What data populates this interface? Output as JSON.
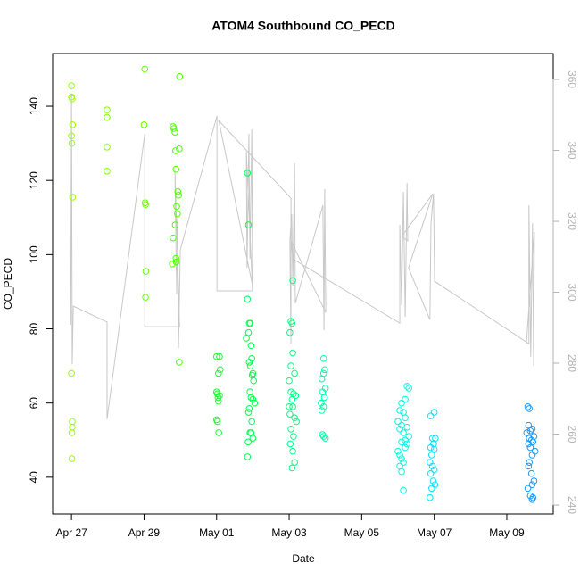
{
  "chart_data": {
    "type": "scatter",
    "title": "ATOM4 Southbound CO_PECD",
    "x_label": "Date",
    "y_label": "CO_PECD",
    "xlim": [
      -0.52,
      13.28
    ],
    "ylim": [
      30.1,
      154.2
    ],
    "y2lim": [
      237.5,
      367.3
    ],
    "xticks": [
      {
        "value": 0,
        "label": "Apr 27"
      },
      {
        "value": 2,
        "label": "Apr 29"
      },
      {
        "value": 4,
        "label": "May 01"
      },
      {
        "value": 6,
        "label": "May 03"
      },
      {
        "value": 8,
        "label": "May 05"
      },
      {
        "value": 10,
        "label": "May 07"
      },
      {
        "value": 12,
        "label": "May 09"
      }
    ],
    "yticks": [
      40,
      60,
      80,
      100,
      120,
      140
    ],
    "y2ticks": [
      240,
      260,
      280,
      300,
      320,
      340,
      360
    ],
    "grid": false,
    "series": [
      {
        "color": "#99ff00",
        "x": [
          0.0,
          0.0,
          0.02,
          0.03,
          0.0,
          0.01,
          0.03,
          0.0,
          0.02,
          0.02,
          0.01,
          0.01
        ],
        "values": [
          145.5,
          142.5,
          142,
          135,
          132,
          130,
          115.5,
          68,
          55,
          53.5,
          52,
          45
        ]
      },
      {
        "color": "#80ff00",
        "x": [
          0.98,
          0.98,
          0.98,
          0.98
        ],
        "values": [
          139,
          137,
          129,
          122.5
        ]
      },
      {
        "color": "#6aff00",
        "x": [
          2.02,
          2.0,
          2.03,
          2.04,
          2.05,
          2.04
        ],
        "values": [
          150,
          135,
          114,
          113.5,
          95.5,
          88.5
        ]
      },
      {
        "color": "#4dff00",
        "x": [
          2.98,
          2.8,
          2.82,
          2.85,
          2.97,
          2.87,
          2.88,
          2.93,
          2.95,
          2.9,
          2.92,
          2.86,
          2.8,
          2.88,
          2.89,
          2.78,
          2.97
        ],
        "values": [
          148,
          134.5,
          134,
          133,
          128.5,
          128,
          123,
          117,
          116,
          113,
          111,
          108,
          104.5,
          99,
          98,
          97.5,
          71
        ]
      },
      {
        "color": "#1aff33",
        "x": [
          4.08,
          4.0,
          4.1,
          4.05,
          4.0,
          4.02,
          4.08,
          4.04,
          4.05,
          4.0,
          4.02,
          4.06
        ],
        "values": [
          72.5,
          72.5,
          69,
          68,
          63,
          62.5,
          62,
          61.5,
          60.5,
          55.5,
          55,
          52
        ]
      },
      {
        "color": "#00ff4d",
        "x": [
          4.85,
          4.88,
          4.85,
          4.9,
          4.93,
          4.88,
          4.82,
          4.95,
          4.97,
          4.9,
          4.93,
          5.0,
          4.98,
          5.02,
          4.92,
          4.95,
          5.0,
          5.05,
          4.9,
          4.88,
          4.97,
          4.92,
          4.95,
          5.0,
          4.87,
          4.85
        ],
        "values": [
          122,
          108,
          88,
          81.5,
          81.5,
          79,
          77.5,
          75.5,
          72,
          71,
          70,
          68,
          67.5,
          66,
          63,
          61.5,
          61,
          60,
          58.5,
          57.5,
          55,
          52,
          52,
          50.5,
          49.5,
          45.5
        ]
      },
      {
        "color": "#00ff80",
        "x": [
          6.1,
          6.05,
          6.08,
          6.02,
          6.1,
          6.05,
          6.15,
          6.0,
          6.05,
          6.12,
          6.18,
          6.08,
          6.0,
          6.1,
          6.02,
          6.15,
          6.2,
          6.05,
          6.12,
          6.03,
          6.1,
          6.15,
          6.08
        ],
        "values": [
          93,
          82,
          81.5,
          79,
          73.5,
          70,
          68,
          66,
          63,
          62.5,
          62,
          61,
          59,
          59,
          57,
          56,
          55,
          53,
          51,
          49,
          47,
          44,
          42.5
        ]
      },
      {
        "color": "#00ffa6",
        "x": [
          6.95,
          6.98,
          6.95,
          6.9,
          7.0,
          6.92,
          6.97,
          6.88,
          6.95,
          6.9,
          6.92,
          6.95,
          7.0
        ],
        "values": [
          72,
          69,
          68,
          66.5,
          64,
          63,
          61.5,
          60,
          59,
          58,
          51.5,
          51,
          50.5
        ]
      },
      {
        "color": "#00ffe0",
        "x": [
          9.25,
          9.3,
          9.2,
          9.1,
          9.05,
          9.15,
          9.2,
          9.0,
          9.1,
          9.25,
          9.05,
          9.15,
          9.3,
          9.2,
          9.1,
          9.25,
          9.2,
          9.0,
          9.05,
          9.1,
          9.15,
          9.05,
          9.1,
          9.15
        ],
        "values": [
          64.5,
          64,
          61,
          60,
          58,
          57.5,
          56,
          55,
          54,
          53.5,
          53,
          52,
          51,
          50,
          49.5,
          49,
          48,
          47,
          46,
          45,
          44,
          43,
          41.5,
          36.5
        ]
      },
      {
        "color": "#00e6ff",
        "x": [
          10.0,
          9.9,
          9.95,
          10.03,
          9.98,
          9.9,
          10.0,
          9.93,
          9.88,
          9.95,
          10.0,
          9.9,
          9.97,
          10.02,
          9.93,
          9.88
        ],
        "values": [
          57.5,
          56.5,
          50.5,
          50.5,
          49,
          48,
          47.5,
          46,
          44,
          43,
          42,
          41,
          39,
          38,
          37,
          34.5
        ]
      },
      {
        "color": "#1a99ff",
        "x": [
          12.58,
          12.62,
          12.6,
          12.7,
          12.65,
          12.55,
          12.75,
          12.62,
          12.68,
          12.72,
          12.6,
          12.65,
          12.78,
          12.7,
          12.62,
          12.6,
          12.68,
          12.75,
          12.7,
          12.58,
          12.65,
          12.72,
          12.7
        ],
        "values": [
          59,
          58.5,
          54,
          53,
          52.5,
          52,
          51,
          50.5,
          50,
          49.5,
          49,
          48,
          47,
          46,
          44,
          43,
          41,
          39,
          38,
          37,
          35,
          34.5,
          34
        ]
      },
      {
        "type": "line",
        "axis": "y2",
        "color": "#c8c8c8",
        "x": [
          -0.02,
          0,
          0.02,
          0.05,
          0.98,
          0.98,
          2.02,
          2.02,
          2.98,
          2.85,
          2.9,
          2.93,
          2.95,
          3.0,
          4.01,
          4.01,
          4.99,
          4.82,
          4.84,
          4.89,
          4.92,
          4.97,
          4.99,
          4.06,
          6.05,
          6.05,
          6.02,
          6.07,
          6.1,
          6.15,
          6.17,
          6.93,
          6.96,
          6.98,
          7.01,
          6.05,
          6.1,
          9.05,
          9.05,
          9.1,
          9.15,
          9.2,
          9.25,
          9.27,
          9.1,
          9.96,
          9.29,
          9.88,
          9.91,
          9.98,
          10.01,
          12.61,
          12.61,
          12.66,
          12.71,
          12.74,
          12.76,
          12.54
        ],
        "values": [
          290.8,
          356,
          279.7,
          296.1,
          291.6,
          264.2,
          344.7,
          290.3,
          290.3,
          334.6,
          299.4,
          322.0,
          284.3,
          312.0,
          349.7,
          300.4,
          300.4,
          339.6,
          306.9,
          344.7,
          309.4,
          345.9,
          301.9,
          348.4,
          326.5,
          285.5,
          314.5,
          322.0,
          301.9,
          336.4,
          296.9,
          324.5,
          289.3,
          329.1,
          294.3,
          314.5,
          309.4,
          291.3,
          319.0,
          296.4,
          328.3,
          293.1,
          330.8,
          314.5,
          315.7,
          327.8,
          306.9,
          292.3,
          319.5,
          327.8,
          303.1,
          285.5,
          324.5,
          281.8,
          319.5,
          279.2,
          317.0,
          285.5
        ]
      }
    ]
  }
}
